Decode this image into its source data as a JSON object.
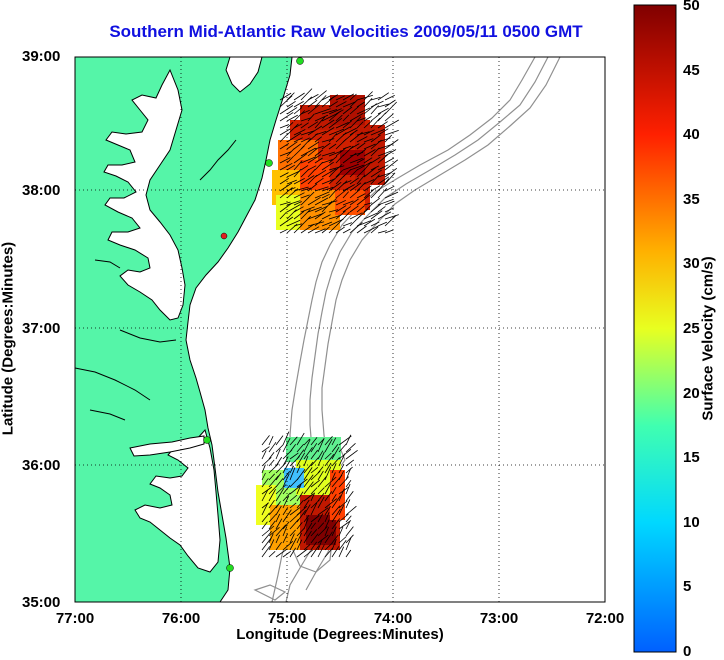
{
  "title": "Southern Mid-Atlantic Raw Velocities 2009/05/11 0500 GMT",
  "axes": {
    "xlabel": "Longitude (Degrees:Minutes)",
    "ylabel": "Latitude (Degrees:Minutes)",
    "x_ticks": [
      "77:00",
      "76:00",
      "75:00",
      "74:00",
      "73:00",
      "72:00"
    ],
    "y_ticks": [
      "39:00",
      "38:00",
      "37:00",
      "36:00",
      "35:00"
    ],
    "grid": "dotted"
  },
  "colorbar": {
    "label": "Surface Velocity (cm/s)",
    "min": 0,
    "max": 50,
    "ticks": [
      "50",
      "45",
      "40",
      "35",
      "30",
      "25",
      "20",
      "15",
      "10",
      "5",
      "0"
    ],
    "colormap": "jet"
  },
  "colors": {
    "title": "#1010e0",
    "land": "#55f5a8",
    "coastline": "#000000",
    "bathymetry": "#909090",
    "hf_radar_site": "#22dd22",
    "hf_radar_site_alt": "#e02020"
  }
}
